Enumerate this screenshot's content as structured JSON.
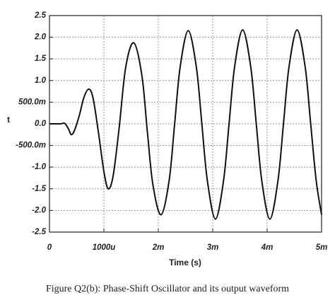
{
  "chart_data": {
    "type": "line",
    "x_label": "Time (s)",
    "y_label": "t",
    "caption": "Figure Q2(b): Phase-Shift Oscillator and its output waveform",
    "x": [
      0,
      0.0002,
      0.00028,
      0.00035,
      0.0004,
      0.00046,
      0.00055,
      0.00063,
      0.00072,
      0.0008,
      0.0009,
      0.001,
      0.00108,
      0.00117,
      0.00128,
      0.0014,
      0.00155,
      0.0017,
      0.0018,
      0.0019,
      0.00205,
      0.0022,
      0.0023,
      0.0024,
      0.00255,
      0.0027,
      0.0028,
      0.0029,
      0.00305,
      0.0032,
      0.0033,
      0.0034,
      0.00355,
      0.0037,
      0.0038,
      0.0039,
      0.00405,
      0.0042,
      0.0043,
      0.0044,
      0.00455,
      0.0047,
      0.0048,
      0.0049,
      0.005
    ],
    "series": [
      {
        "color": "#111111",
        "values": [
          0,
          0,
          0.01,
          -0.12,
          -0.25,
          -0.15,
          0.2,
          0.6,
          0.8,
          0.6,
          -0.2,
          -1.1,
          -1.5,
          -1.2,
          -0.1,
          1.3,
          1.87,
          1.1,
          -0.2,
          -1.4,
          -2.1,
          -1.3,
          0,
          1.3,
          2.15,
          1.3,
          0,
          -1.3,
          -2.2,
          -1.3,
          0,
          1.3,
          2.17,
          1.3,
          0,
          -1.3,
          -2.2,
          -1.3,
          0,
          1.3,
          2.17,
          1.3,
          0,
          -1.3,
          -2.1
        ]
      }
    ],
    "xlim": [
      0,
      0.005
    ],
    "xticks": [
      0,
      {
        "value": 0.001,
        "label": "1000u"
      },
      {
        "value": 0.002,
        "label": "2m"
      },
      {
        "value": 0.003,
        "label": "3m"
      },
      {
        "value": 0.004,
        "label": "4m"
      },
      {
        "value": 0.005,
        "label": "5m"
      }
    ],
    "ylim": [
      -2.5,
      2.5
    ],
    "yticks": [
      2.5,
      {
        "value": 2,
        "label": "2.0"
      },
      1.5,
      {
        "value": 1,
        "label": "1.0"
      },
      {
        "value": 0.5,
        "label": "500.0m"
      },
      {
        "value": 0,
        "label": "0.0"
      },
      {
        "value": -0.5,
        "label": "-500.0m"
      },
      {
        "value": -1,
        "label": "-1.0"
      },
      -1.5,
      {
        "value": -2,
        "label": "-2.0"
      },
      -2.5
    ],
    "grid": true
  }
}
